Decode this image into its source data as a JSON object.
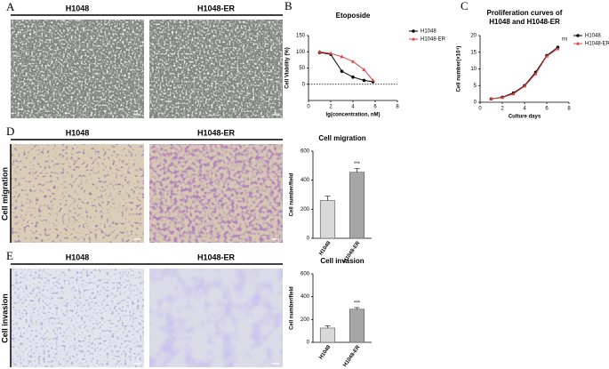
{
  "panels": [
    {
      "label": "A",
      "titles": [
        "H1048",
        "H1048-ER"
      ]
    },
    {
      "label": "D",
      "titles": [
        "H1048",
        "H1048-ER"
      ],
      "side_label": "Cell migration"
    },
    {
      "label": "E",
      "titles": [
        "H1048",
        "H1048-ER"
      ],
      "side_label": "Cell invasion"
    }
  ],
  "chart_data": [
    {
      "type": "line",
      "panel": "B",
      "title": "Etoposide",
      "xlabel": "lg(concentration, nM)",
      "ylabel": "Cell Viability (%)",
      "x": [
        1,
        2,
        3,
        4,
        5,
        5.8
      ],
      "series": [
        {
          "name": "H1048",
          "color": "#000000",
          "marker": "circle",
          "values": [
            98,
            92,
            40,
            22,
            12,
            8
          ]
        },
        {
          "name": "H1048-ER",
          "color": "#e0403f",
          "marker": "triangle",
          "values": [
            100,
            95,
            85,
            70,
            45,
            12
          ]
        }
      ],
      "xlim": [
        0,
        8
      ],
      "xticks": [
        0,
        2,
        4,
        6,
        8
      ],
      "ylim": [
        -50,
        150
      ],
      "yticks": [
        0,
        50,
        100,
        150
      ],
      "hline": 0
    },
    {
      "type": "line",
      "panel": "C",
      "title": [
        "Proliferation curves of",
        "H1048 and H1048-ER"
      ],
      "xlabel": "Culture days",
      "ylabel": "Cell number(×10⁴)",
      "x": [
        1,
        2,
        3,
        4,
        5,
        6,
        7
      ],
      "series": [
        {
          "name": "H1048",
          "color": "#000000",
          "marker": "circle",
          "values": [
            1,
            1.5,
            2.8,
            5,
            9,
            14,
            16.5
          ]
        },
        {
          "name": "H1048-ER",
          "color": "#e0403f",
          "marker": "triangle",
          "values": [
            1,
            1.4,
            2.5,
            4.8,
            8.5,
            13.8,
            16
          ]
        }
      ],
      "annotation": "ns",
      "xlim": [
        0,
        8
      ],
      "xticks": [
        0,
        2,
        4,
        6,
        8
      ],
      "ylim": [
        0,
        20
      ],
      "yticks": [
        0,
        5,
        10,
        15,
        20
      ]
    },
    {
      "type": "bar",
      "title": "Cell migration",
      "ylabel": "Cell number/field",
      "categories": [
        "H1048",
        "H1048-ER"
      ],
      "values": [
        260,
        455
      ],
      "errors": [
        30,
        25
      ],
      "colors": [
        "#d9d9d9",
        "#a6a6a6"
      ],
      "significance": [
        null,
        "***"
      ],
      "ylim": [
        0,
        600
      ],
      "yticks": [
        0,
        200,
        400,
        600
      ]
    },
    {
      "type": "bar",
      "title": "Cell invasion",
      "ylabel": "Cell number/field",
      "categories": [
        "H1048",
        "H1048-ER"
      ],
      "values": [
        125,
        290
      ],
      "errors": [
        20,
        15
      ],
      "colors": [
        "#d9d9d9",
        "#a6a6a6"
      ],
      "significance": [
        null,
        "***"
      ],
      "ylim": [
        0,
        600
      ],
      "yticks": [
        0,
        200,
        400,
        600
      ]
    }
  ]
}
